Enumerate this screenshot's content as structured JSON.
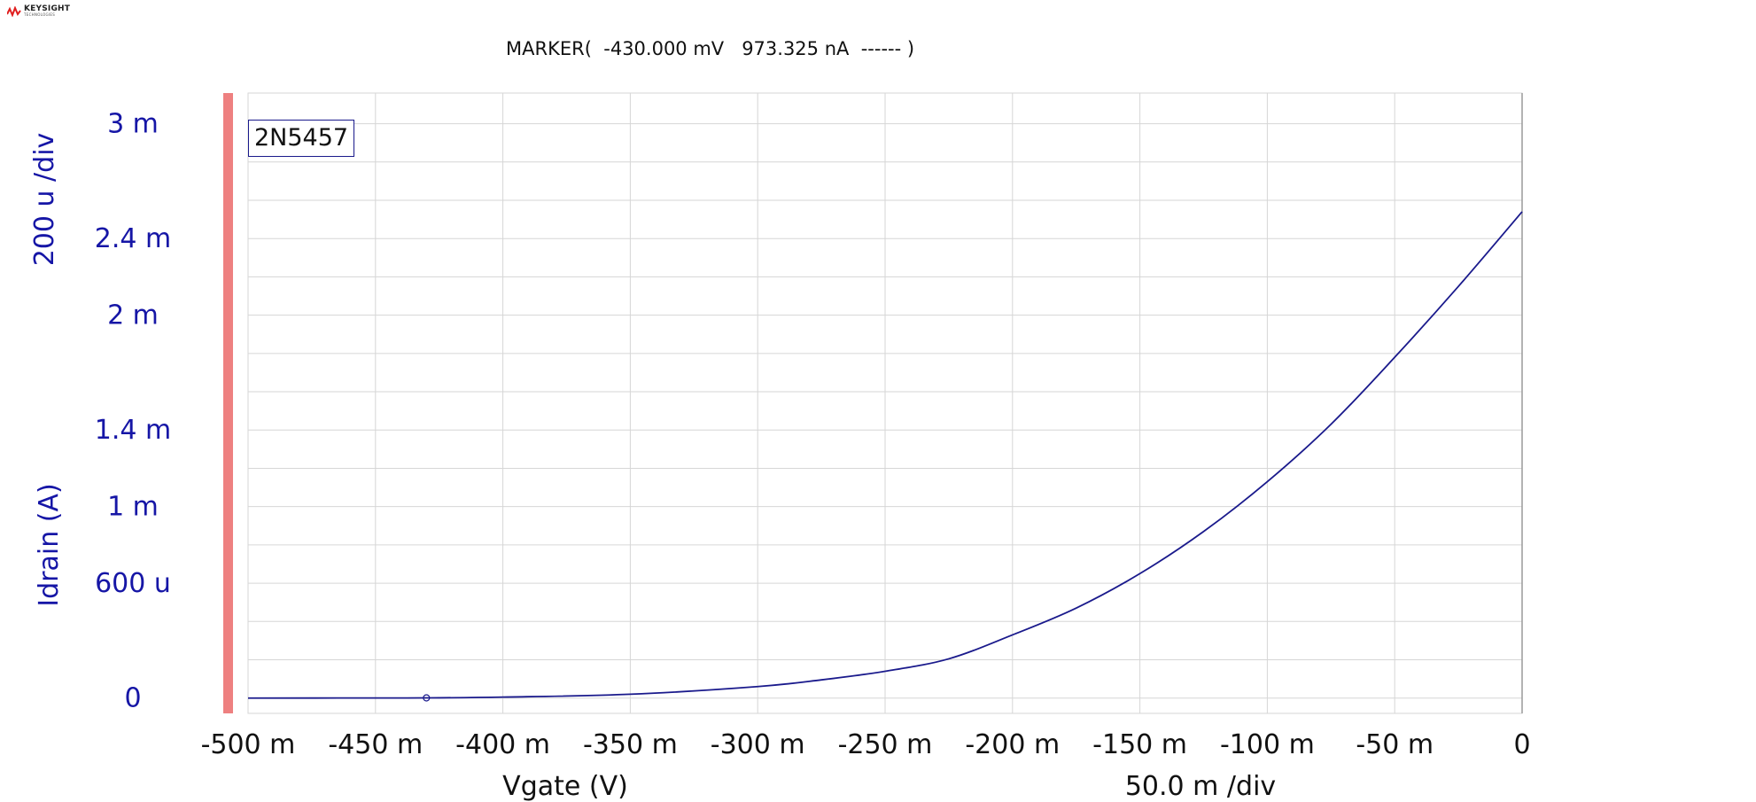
{
  "logo": {
    "brand": "KEYSIGHT",
    "sub": "TECHNOLOGIES",
    "icon": "keysight-wave-icon"
  },
  "marker": {
    "readout": "MARKER(  -430.000 mV   973.325 nA  ------ )"
  },
  "colors": {
    "trace": "#1a1a8c",
    "axis_text": "#1616a6",
    "grid": "#d6d6d6",
    "side_bar": "#ee8080",
    "text": "#111111"
  },
  "chart_data": {
    "type": "line",
    "trace_label": "2N5457",
    "xlabel": "Vgate (V)",
    "x_div": "50.0 m /div",
    "ylabel": "Idrain (A)",
    "y_div": "200 u /div",
    "xlim": [
      -0.5,
      0
    ],
    "ylim": [
      -8e-05,
      0.00316
    ],
    "grid": true,
    "x_ticks": [
      {
        "value": -0.5,
        "label": "-500 m"
      },
      {
        "value": -0.45,
        "label": "-450 m"
      },
      {
        "value": -0.4,
        "label": "-400 m"
      },
      {
        "value": -0.35,
        "label": "-350 m"
      },
      {
        "value": -0.3,
        "label": "-300 m"
      },
      {
        "value": -0.25,
        "label": "-250 m"
      },
      {
        "value": -0.2,
        "label": "-200 m"
      },
      {
        "value": -0.15,
        "label": "-150 m"
      },
      {
        "value": -0.1,
        "label": "-100 m"
      },
      {
        "value": -0.05,
        "label": "-50 m"
      },
      {
        "value": 0,
        "label": "0"
      }
    ],
    "y_ticks": [
      {
        "value": 0.003,
        "label": "3 m"
      },
      {
        "value": 0.0024,
        "label": "2.4 m"
      },
      {
        "value": 0.002,
        "label": "2 m"
      },
      {
        "value": 0.0014,
        "label": "1.4 m"
      },
      {
        "value": 0.001,
        "label": "1 m"
      },
      {
        "value": 0.0006,
        "label": "600 u"
      },
      {
        "value": 0,
        "label": "0"
      }
    ],
    "y_grid": [
      0.003,
      0.0028,
      0.0026,
      0.0024,
      0.0022,
      0.002,
      0.0018,
      0.0016,
      0.0014,
      0.0012,
      0.001,
      0.0008,
      0.0006,
      0.0004,
      0.0002,
      0
    ],
    "series": [
      {
        "x": [
          -0.5,
          -0.45,
          -0.43,
          -0.4,
          -0.35,
          -0.3,
          -0.275,
          -0.25,
          -0.225,
          -0.2,
          -0.175,
          -0.15,
          -0.125,
          -0.1,
          -0.075,
          -0.05,
          -0.025,
          0
        ],
        "y": [
          0,
          5e-07,
          9.7e-07,
          5e-06,
          2e-05,
          6e-05,
          9.5e-05,
          0.00014,
          0.000205,
          0.00033,
          0.00047,
          0.00065,
          0.00087,
          0.00113,
          0.00143,
          0.00178,
          0.00215,
          0.00254
        ]
      }
    ],
    "marker_point": {
      "x": -0.43,
      "y": 9.7e-07
    }
  }
}
